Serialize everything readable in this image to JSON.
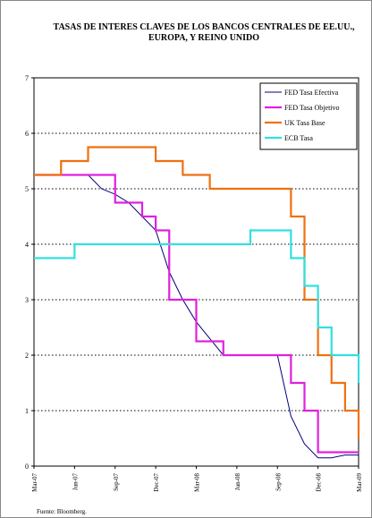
{
  "chart_data": {
    "type": "line",
    "title": "TASAS DE INTERES CLAVES DE LOS BANCOS CENTRALES DE EE.UU., EUROPA, Y REINO UNIDO",
    "source": "Fuente: Bloomberg.",
    "xlim": [
      "2007-03",
      "2009-03"
    ],
    "xticks": [
      {
        "value": "2007-03",
        "label": "Mar-07"
      },
      {
        "value": "2007-06",
        "label": "Jun-07"
      },
      {
        "value": "2007-09",
        "label": "Sep-07"
      },
      {
        "value": "2007-12",
        "label": "Dec-07"
      },
      {
        "value": "2008-03",
        "label": "Mar-08"
      },
      {
        "value": "2008-06",
        "label": "Jun-08"
      },
      {
        "value": "2008-09",
        "label": "Sep-08"
      },
      {
        "value": "2008-12",
        "label": "Dec-08"
      },
      {
        "value": "2009-03",
        "label": "Mar-09"
      }
    ],
    "ylim": [
      0,
      7
    ],
    "yticks": [
      0,
      1,
      2,
      3,
      4,
      5,
      6,
      7
    ],
    "grid": true,
    "legend": "top-right",
    "series": [
      {
        "name": "FED Tasa Efectiva",
        "color": "#000080",
        "step": false,
        "x": [
          "2007-03",
          "2007-04",
          "2007-05",
          "2007-06",
          "2007-07",
          "2007-08",
          "2007-09",
          "2007-10",
          "2007-11",
          "2007-12",
          "2008-01",
          "2008-02",
          "2008-03",
          "2008-04",
          "2008-05",
          "2008-06",
          "2008-07",
          "2008-08",
          "2008-09",
          "2008-10",
          "2008-11",
          "2008-12",
          "2009-01",
          "2009-02",
          "2009-03"
        ],
        "values": [
          5.25,
          5.25,
          5.25,
          5.25,
          5.25,
          5.0,
          4.9,
          4.75,
          4.5,
          4.25,
          3.5,
          3.0,
          2.6,
          2.3,
          2.0,
          2.0,
          2.0,
          2.0,
          2.0,
          0.9,
          0.4,
          0.15,
          0.15,
          0.2,
          0.2
        ]
      },
      {
        "name": "FED Tasa Objetivo",
        "color": "#e020e0",
        "step": true,
        "x": [
          "2007-03",
          "2007-09",
          "2007-11",
          "2007-12",
          "2008-01",
          "2008-03",
          "2008-05",
          "2008-10",
          "2008-11",
          "2008-12",
          "2009-03"
        ],
        "values": [
          5.25,
          4.75,
          4.5,
          4.25,
          3.0,
          2.25,
          2.0,
          1.5,
          1.0,
          0.25,
          0.25
        ]
      },
      {
        "name": "UK Tasa Base",
        "color": "#f07010",
        "step": true,
        "x": [
          "2007-03",
          "2007-05",
          "2007-07",
          "2007-12",
          "2008-02",
          "2008-04",
          "2008-10",
          "2008-11",
          "2008-12",
          "2009-01",
          "2009-02",
          "2009-03"
        ],
        "values": [
          5.25,
          5.5,
          5.75,
          5.5,
          5.25,
          5.0,
          4.5,
          3.0,
          2.0,
          1.5,
          1.0,
          0.5
        ]
      },
      {
        "name": "ECB Tasa",
        "color": "#30e0e0",
        "step": true,
        "x": [
          "2007-03",
          "2007-06",
          "2008-07",
          "2008-10",
          "2008-11",
          "2008-12",
          "2009-01",
          "2009-03"
        ],
        "values": [
          3.75,
          4.0,
          4.25,
          3.75,
          3.25,
          2.5,
          2.0,
          1.5
        ]
      }
    ]
  }
}
